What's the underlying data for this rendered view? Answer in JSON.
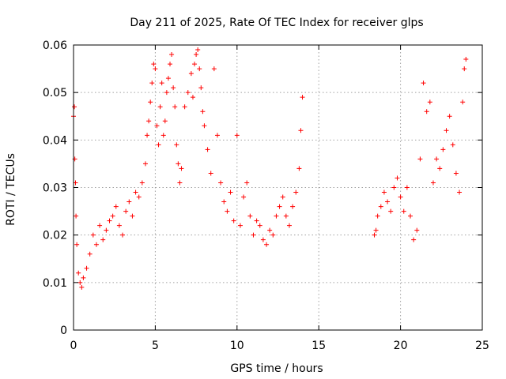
{
  "chart_data": {
    "type": "scatter",
    "title": "Day 211 of 2025, Rate Of TEC Index for receiver glps",
    "xlabel": "GPS time / hours",
    "ylabel": "ROTI / TECUs",
    "xlim": [
      0,
      25
    ],
    "ylim": [
      0,
      0.06
    ],
    "xticks": [
      0,
      5,
      10,
      15,
      20,
      25
    ],
    "xtick_labels": [
      "0",
      "5",
      "10",
      "15",
      "20",
      "25"
    ],
    "yticks": [
      0,
      0.01,
      0.02,
      0.03,
      0.04,
      0.05,
      0.06
    ],
    "ytick_labels": [
      "0",
      "0.01",
      "0.02",
      "0.03",
      "0.04",
      "0.05",
      "0.06"
    ],
    "grid": true,
    "marker": "+",
    "color": "#ff0000",
    "data_gap_hours": [
      14.0,
      18.4
    ],
    "series": [
      {
        "name": "ROTI",
        "x": [
          0.0,
          0.05,
          0.08,
          0.12,
          0.15,
          0.2,
          0.3,
          0.4,
          0.5,
          0.6,
          0.8,
          1.0,
          1.2,
          1.4,
          1.6,
          1.8,
          2.0,
          2.2,
          2.4,
          2.6,
          2.8,
          3.0,
          3.2,
          3.4,
          3.6,
          3.8,
          4.0,
          4.2,
          4.4,
          4.5,
          4.6,
          4.7,
          4.8,
          4.9,
          5.0,
          5.1,
          5.2,
          5.3,
          5.4,
          5.5,
          5.6,
          5.7,
          5.8,
          5.9,
          6.0,
          6.1,
          6.2,
          6.3,
          6.4,
          6.5,
          6.6,
          6.8,
          7.0,
          7.2,
          7.3,
          7.4,
          7.5,
          7.6,
          7.7,
          7.8,
          7.9,
          8.0,
          8.2,
          8.4,
          8.6,
          8.8,
          9.0,
          9.2,
          9.4,
          9.6,
          9.8,
          10.0,
          10.2,
          10.4,
          10.6,
          10.8,
          11.0,
          11.2,
          11.4,
          11.6,
          11.8,
          12.0,
          12.2,
          12.4,
          12.6,
          12.8,
          13.0,
          13.2,
          13.4,
          13.6,
          13.8,
          13.9,
          14.0,
          18.4,
          18.5,
          18.6,
          18.8,
          19.0,
          19.2,
          19.4,
          19.6,
          19.8,
          20.0,
          20.2,
          20.4,
          20.6,
          20.8,
          21.0,
          21.2,
          21.4,
          21.6,
          21.8,
          22.0,
          22.2,
          22.4,
          22.6,
          22.8,
          23.0,
          23.2,
          23.4,
          23.6,
          23.8,
          23.9,
          24.0
        ],
        "y": [
          0.045,
          0.047,
          0.036,
          0.031,
          0.024,
          0.018,
          0.012,
          0.01,
          0.009,
          0.011,
          0.013,
          0.016,
          0.02,
          0.018,
          0.022,
          0.019,
          0.021,
          0.023,
          0.024,
          0.026,
          0.022,
          0.02,
          0.025,
          0.027,
          0.024,
          0.029,
          0.028,
          0.031,
          0.035,
          0.041,
          0.044,
          0.048,
          0.052,
          0.056,
          0.055,
          0.043,
          0.039,
          0.047,
          0.052,
          0.041,
          0.044,
          0.05,
          0.053,
          0.056,
          0.058,
          0.051,
          0.047,
          0.039,
          0.035,
          0.031,
          0.034,
          0.047,
          0.05,
          0.054,
          0.049,
          0.056,
          0.058,
          0.059,
          0.055,
          0.051,
          0.046,
          0.043,
          0.038,
          0.033,
          0.055,
          0.041,
          0.031,
          0.027,
          0.025,
          0.029,
          0.023,
          0.041,
          0.022,
          0.028,
          0.031,
          0.024,
          0.02,
          0.023,
          0.022,
          0.019,
          0.018,
          0.021,
          0.02,
          0.024,
          0.026,
          0.028,
          0.024,
          0.022,
          0.026,
          0.029,
          0.034,
          0.042,
          0.049,
          0.02,
          0.021,
          0.024,
          0.026,
          0.029,
          0.027,
          0.025,
          0.03,
          0.032,
          0.028,
          0.025,
          0.03,
          0.024,
          0.019,
          0.021,
          0.036,
          0.052,
          0.046,
          0.048,
          0.031,
          0.036,
          0.034,
          0.038,
          0.042,
          0.045,
          0.039,
          0.033,
          0.029,
          0.048,
          0.055,
          0.057
        ]
      }
    ]
  }
}
